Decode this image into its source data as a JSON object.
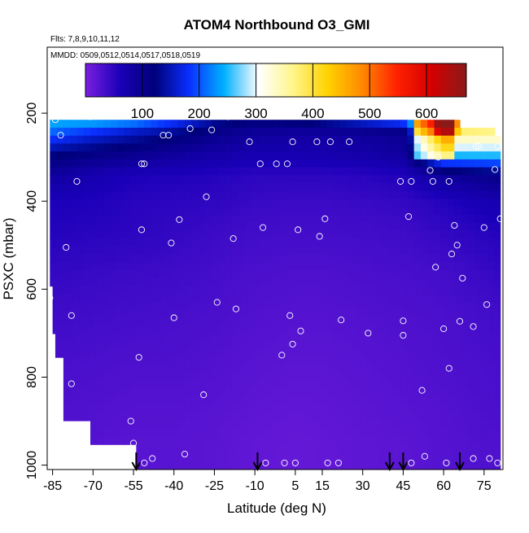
{
  "chart_data": {
    "type": "heatmap",
    "title": "ATOM4 Northbound O3_GMI",
    "subtitle_flights": "Flts: 7,8,9,10,11,12",
    "subtitle_dates": "MMDD: 0509,0512,0514,0517,0518,0519",
    "xlabel": "Latitude (deg N)",
    "ylabel": "PSXC (mbar)",
    "xlim": [
      -87,
      82
    ],
    "ylim": [
      1010,
      50
    ],
    "x_ticks": [
      -85,
      -70,
      -55,
      -40,
      -25,
      -10,
      5,
      15,
      30,
      45,
      60,
      75
    ],
    "x_tick_labels": [
      "-85",
      "-70",
      "-55",
      "-40",
      "-25",
      "-10",
      "5",
      "15",
      "30",
      "45",
      "60",
      "75"
    ],
    "y_ticks": [
      200,
      400,
      600,
      800,
      1000
    ],
    "y_tick_labels": [
      "200",
      "400",
      "600",
      "800",
      "1000"
    ],
    "colorbar": {
      "min": 0,
      "max": 670,
      "tick_values": [
        100,
        200,
        300,
        400,
        500,
        600
      ],
      "tick_labels": [
        "100",
        "200",
        "300",
        "400",
        "500",
        "600"
      ],
      "colors": [
        "#7a1fe0",
        "#1a00b8",
        "#00007a",
        "#0a2fff",
        "#00b0ff",
        "#ffffff",
        "#fff58a",
        "#ffd200",
        "#ff8800",
        "#ff2000",
        "#d40000",
        "#8a1a1a"
      ]
    },
    "field": {
      "description": "curtain of O3 mixing ratio (ppbv) vs latitude and pressure",
      "levels_mbar": [
        208,
        245,
        290,
        340,
        400,
        470,
        560,
        660,
        770,
        880,
        950,
        985
      ],
      "latitudes": [
        -85,
        -70,
        -55,
        -40,
        -25,
        -10,
        5,
        15,
        30,
        45,
        60,
        80
      ],
      "values": [
        [
          260,
          275,
          260,
          210,
          150,
          130,
          140,
          160,
          200,
          240,
          480,
          420
        ],
        [
          205,
          175,
          150,
          130,
          105,
          90,
          85,
          85,
          90,
          95,
          370,
          360
        ],
        [
          130,
          115,
          105,
          90,
          80,
          70,
          70,
          72,
          78,
          88,
          270,
          270
        ],
        [
          85,
          70,
          60,
          58,
          55,
          50,
          50,
          50,
          52,
          58,
          90,
          110
        ],
        [
          60,
          58,
          52,
          50,
          48,
          42,
          40,
          40,
          42,
          45,
          55,
          70
        ],
        [
          55,
          52,
          50,
          45,
          40,
          36,
          35,
          35,
          36,
          38,
          45,
          55
        ],
        [
          45,
          42,
          40,
          38,
          34,
          30,
          28,
          28,
          30,
          32,
          35,
          45
        ],
        [
          38,
          36,
          34,
          32,
          30,
          26,
          24,
          24,
          26,
          28,
          30,
          36
        ],
        [
          32,
          30,
          28,
          28,
          26,
          22,
          20,
          20,
          22,
          25,
          28,
          32
        ],
        [
          28,
          26,
          24,
          24,
          22,
          18,
          16,
          17,
          20,
          22,
          25,
          30
        ],
        [
          null,
          null,
          22,
          22,
          20,
          16,
          14,
          15,
          18,
          20,
          24,
          28
        ],
        [
          null,
          null,
          22,
          22,
          20,
          16,
          14,
          15,
          18,
          20,
          24,
          28
        ]
      ]
    },
    "observations": [
      [
        -84,
        215
      ],
      [
        -82,
        250
      ],
      [
        -86,
        620
      ],
      [
        -80,
        505
      ],
      [
        -78,
        660
      ],
      [
        -78,
        815
      ],
      [
        -76,
        355
      ],
      [
        -71,
        208
      ],
      [
        -56,
        900
      ],
      [
        -55,
        950
      ],
      [
        -52,
        315
      ],
      [
        -51,
        315
      ],
      [
        -52,
        465
      ],
      [
        -53,
        755
      ],
      [
        -51,
        995
      ],
      [
        -48,
        985
      ],
      [
        -44,
        250
      ],
      [
        -42,
        250
      ],
      [
        -41,
        495
      ],
      [
        -40,
        665
      ],
      [
        -38,
        442
      ],
      [
        -36,
        975
      ],
      [
        -34,
        235
      ],
      [
        -29,
        840
      ],
      [
        -28,
        390
      ],
      [
        -26,
        238
      ],
      [
        -24,
        630
      ],
      [
        -20,
        208
      ],
      [
        -18,
        485
      ],
      [
        -17,
        645
      ],
      [
        -12,
        265
      ],
      [
        -8,
        315
      ],
      [
        -7,
        460
      ],
      [
        -6,
        995
      ],
      [
        -2,
        315
      ],
      [
        0,
        750
      ],
      [
        1,
        995
      ],
      [
        2,
        315
      ],
      [
        3,
        660
      ],
      [
        4,
        265
      ],
      [
        4,
        725
      ],
      [
        5,
        995
      ],
      [
        6,
        465
      ],
      [
        7,
        695
      ],
      [
        13,
        265
      ],
      [
        14,
        480
      ],
      [
        16,
        440
      ],
      [
        17,
        995
      ],
      [
        18,
        265
      ],
      [
        21,
        995
      ],
      [
        22,
        670
      ],
      [
        25,
        265
      ],
      [
        32,
        700
      ],
      [
        44,
        355
      ],
      [
        45,
        672
      ],
      [
        45,
        705
      ],
      [
        47,
        435
      ],
      [
        48,
        355
      ],
      [
        48,
        995
      ],
      [
        52,
        830
      ],
      [
        53,
        980
      ],
      [
        55,
        330
      ],
      [
        56,
        355
      ],
      [
        57,
        550
      ],
      [
        58,
        300
      ],
      [
        60,
        690
      ],
      [
        61,
        995
      ],
      [
        62,
        355
      ],
      [
        62,
        780
      ],
      [
        63,
        520
      ],
      [
        64,
        455
      ],
      [
        65,
        500
      ],
      [
        66,
        673
      ],
      [
        67,
        575
      ],
      [
        71,
        685
      ],
      [
        71,
        985
      ],
      [
        72,
        275
      ],
      [
        73,
        275
      ],
      [
        75,
        460
      ],
      [
        76,
        635
      ],
      [
        77,
        985
      ],
      [
        79,
        328
      ],
      [
        80,
        275
      ],
      [
        80,
        995
      ],
      [
        81,
        440
      ]
    ],
    "arrow_latitudes": [
      -54,
      -9,
      40,
      45,
      66
    ]
  }
}
